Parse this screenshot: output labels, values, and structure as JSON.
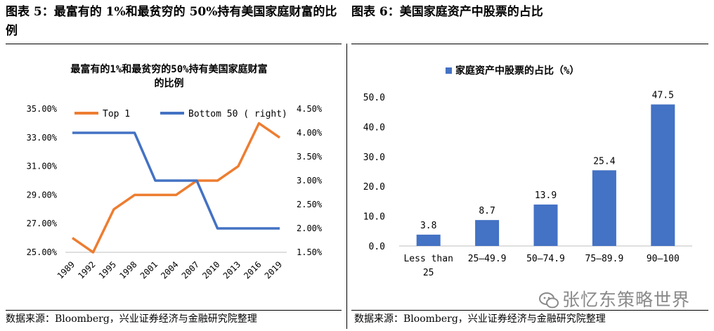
{
  "figure_titles": {
    "left": "图表 5：最富有的 1%和最贫穷的 50%持有美国家庭财富的比例",
    "right": "图表 6：美国家庭资产中股票的占比"
  },
  "source_left": "数据来源：Bloomberg，兴业证券经济与金融研究院整理",
  "source_right": "数据来源：Bloomberg，兴业证券经济与金融研究院整理",
  "watermark": "张忆东策略世界",
  "colors": {
    "orange": "#ED7D31",
    "blue": "#4472C4",
    "axis": "#bfbfbf"
  },
  "chart_data": [
    {
      "type": "line",
      "title_lines": [
        "最富有的1%和最贫穷的50%持有美国家庭财富",
        "的比例"
      ],
      "x": [
        "1989",
        "1992",
        "1995",
        "1998",
        "2001",
        "2004",
        "2007",
        "2010",
        "2013",
        "2016",
        "2019"
      ],
      "series": [
        {
          "name": "Top 1",
          "axis": "left",
          "color": "#ED7D31",
          "values": [
            26.0,
            25.0,
            28.0,
            29.0,
            29.0,
            29.0,
            30.0,
            30.0,
            31.0,
            34.0,
            33.0
          ]
        },
        {
          "name": "Bottom 50 ( right)",
          "axis": "right",
          "color": "#4472C4",
          "values": [
            4.0,
            4.0,
            4.0,
            4.0,
            3.0,
            3.0,
            3.0,
            2.0,
            2.0,
            2.0,
            2.0
          ]
        }
      ],
      "y_left": {
        "min": 25,
        "max": 35,
        "ticks": [
          "25.00%",
          "27.00%",
          "29.00%",
          "31.00%",
          "33.00%",
          "35.00%"
        ]
      },
      "y_right": {
        "min": 1.5,
        "max": 4.5,
        "ticks": [
          "1.50%",
          "2.00%",
          "2.50%",
          "3.00%",
          "3.50%",
          "4.00%",
          "4.50%"
        ]
      },
      "legend_position": "top",
      "grid": false
    },
    {
      "type": "bar",
      "legend": "家庭资产中股票的占比（%）",
      "categories": [
        "Less than 25",
        "25—49.9",
        "50—74.9",
        "75—89.9",
        "90—100"
      ],
      "values": [
        3.8,
        8.7,
        13.9,
        25.4,
        47.5
      ],
      "data_labels": [
        "3.8",
        "8.7",
        "13.9",
        "25.4",
        "47.5"
      ],
      "y_ticks": [
        "0.0",
        "10.0",
        "20.0",
        "30.0",
        "40.0",
        "50.0"
      ],
      "ylim": [
        0,
        50
      ],
      "color": "#4472C4",
      "legend_position": "top",
      "grid": false
    }
  ]
}
